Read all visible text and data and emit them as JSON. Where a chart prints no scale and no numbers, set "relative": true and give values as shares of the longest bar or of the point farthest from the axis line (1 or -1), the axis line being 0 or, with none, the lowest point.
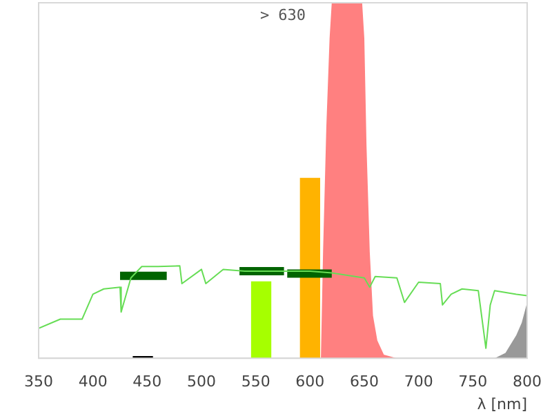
{
  "chart_data": {
    "type": "line",
    "title": "> 630",
    "xlabel": "λ [nm]",
    "relative": true,
    "xlim": [
      350,
      800
    ],
    "xticks": [
      350,
      400,
      450,
      500,
      550,
      600,
      650,
      700,
      750,
      800
    ],
    "legend": false,
    "series": [
      {
        "type": "area",
        "color": "#ff8080",
        "x": [
          350,
          610,
          612,
          615,
          618,
          620,
          648,
          650,
          652,
          655,
          658,
          662,
          668,
          680,
          800
        ],
        "values": [
          0,
          0,
          0.3,
          0.65,
          0.9,
          1,
          1,
          0.9,
          0.6,
          0.3,
          0.12,
          0.05,
          0.01,
          0,
          0
        ]
      },
      {
        "type": "area",
        "color": "#999999",
        "x": [
          770,
          780,
          790,
          795,
          800
        ],
        "values": [
          0,
          0.015,
          0.065,
          0.1,
          0.157
        ]
      },
      {
        "color": "#66dd55",
        "x": [
          350,
          370,
          390,
          400,
          410,
          425,
          426,
          435,
          445,
          460,
          480,
          482,
          500,
          504,
          520,
          540,
          560,
          600,
          620,
          650,
          655,
          660,
          680,
          687,
          700,
          720,
          722,
          730,
          740,
          755,
          762,
          766,
          770,
          790,
          800
        ],
        "values": [
          0.084,
          0.11,
          0.11,
          0.18,
          0.195,
          0.2,
          0.13,
          0.226,
          0.258,
          0.258,
          0.26,
          0.21,
          0.25,
          0.21,
          0.25,
          0.245,
          0.245,
          0.245,
          0.24,
          0.226,
          0.2,
          0.23,
          0.226,
          0.157,
          0.214,
          0.21,
          0.15,
          0.18,
          0.195,
          0.19,
          0.028,
          0.15,
          0.19,
          0.18,
          0.176
        ]
      },
      {
        "type": "bar",
        "colors": [
          "#000000",
          "#a6ff00",
          "#ffb300"
        ],
        "x": [
          446,
          555,
          600
        ],
        "values": [
          0.005,
          0.215,
          0.506
        ]
      },
      {
        "color": "#006400",
        "x": [
          425,
          468,
          470,
          535,
          576,
          577,
          579,
          620
        ],
        "values": [
          0.232,
          0.232,
          null,
          0.245,
          0.245,
          null,
          0.238,
          0.238
        ]
      }
    ]
  }
}
